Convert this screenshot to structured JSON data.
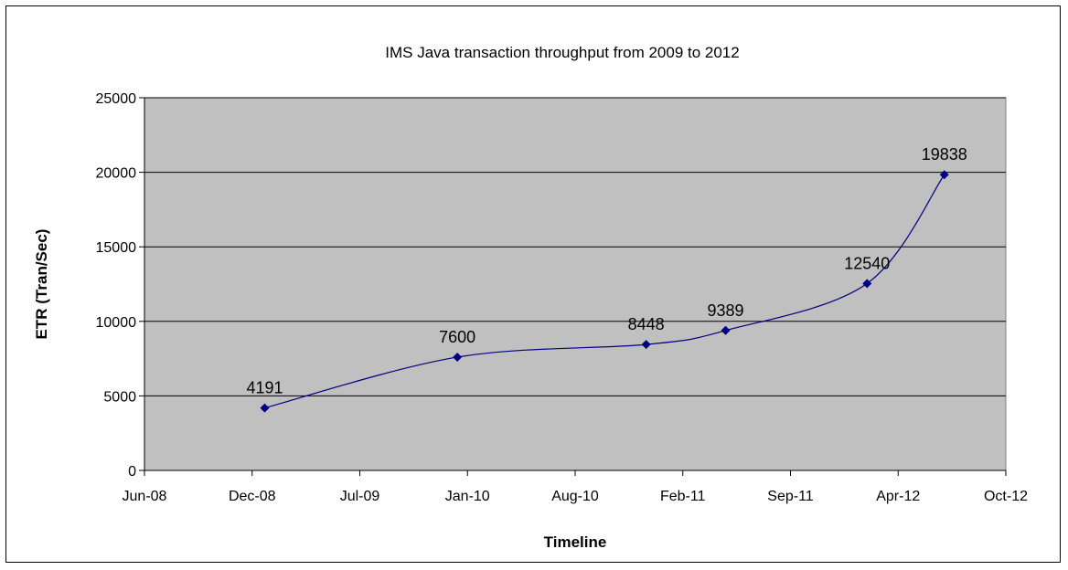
{
  "chart_data": {
    "type": "line",
    "title": "IMS Java transaction throughput from 2009 to 2012",
    "xlabel": "Timeline",
    "ylabel": "ETR (Tran/Sec)",
    "x_ticks": [
      "Jun-08",
      "Dec-08",
      "Jul-09",
      "Jan-10",
      "Aug-10",
      "Feb-11",
      "Sep-11",
      "Apr-12",
      "Oct-12"
    ],
    "y_ticks": [
      "0",
      "5000",
      "10000",
      "15000",
      "20000",
      "25000"
    ],
    "ylim": [
      0,
      25000
    ],
    "xlim": [
      "2008-06-01",
      "2012-10-01"
    ],
    "grid": true,
    "series": [
      {
        "points": [
          {
            "x": "2009-01-08",
            "y": 4191,
            "label": "4191"
          },
          {
            "x": "2009-12-28",
            "y": 7600,
            "label": "7600"
          },
          {
            "x": "2010-12-10",
            "y": 8448,
            "label": "8448"
          },
          {
            "x": "2011-05-05",
            "y": 9389,
            "label": "9389"
          },
          {
            "x": "2012-01-20",
            "y": 12540,
            "label": "12540"
          },
          {
            "x": "2012-06-10",
            "y": 19838,
            "label": "19838"
          }
        ]
      }
    ],
    "colors": {
      "plot_bg": "#c0c0c0",
      "line": "#000080",
      "grid": "#000000"
    }
  }
}
